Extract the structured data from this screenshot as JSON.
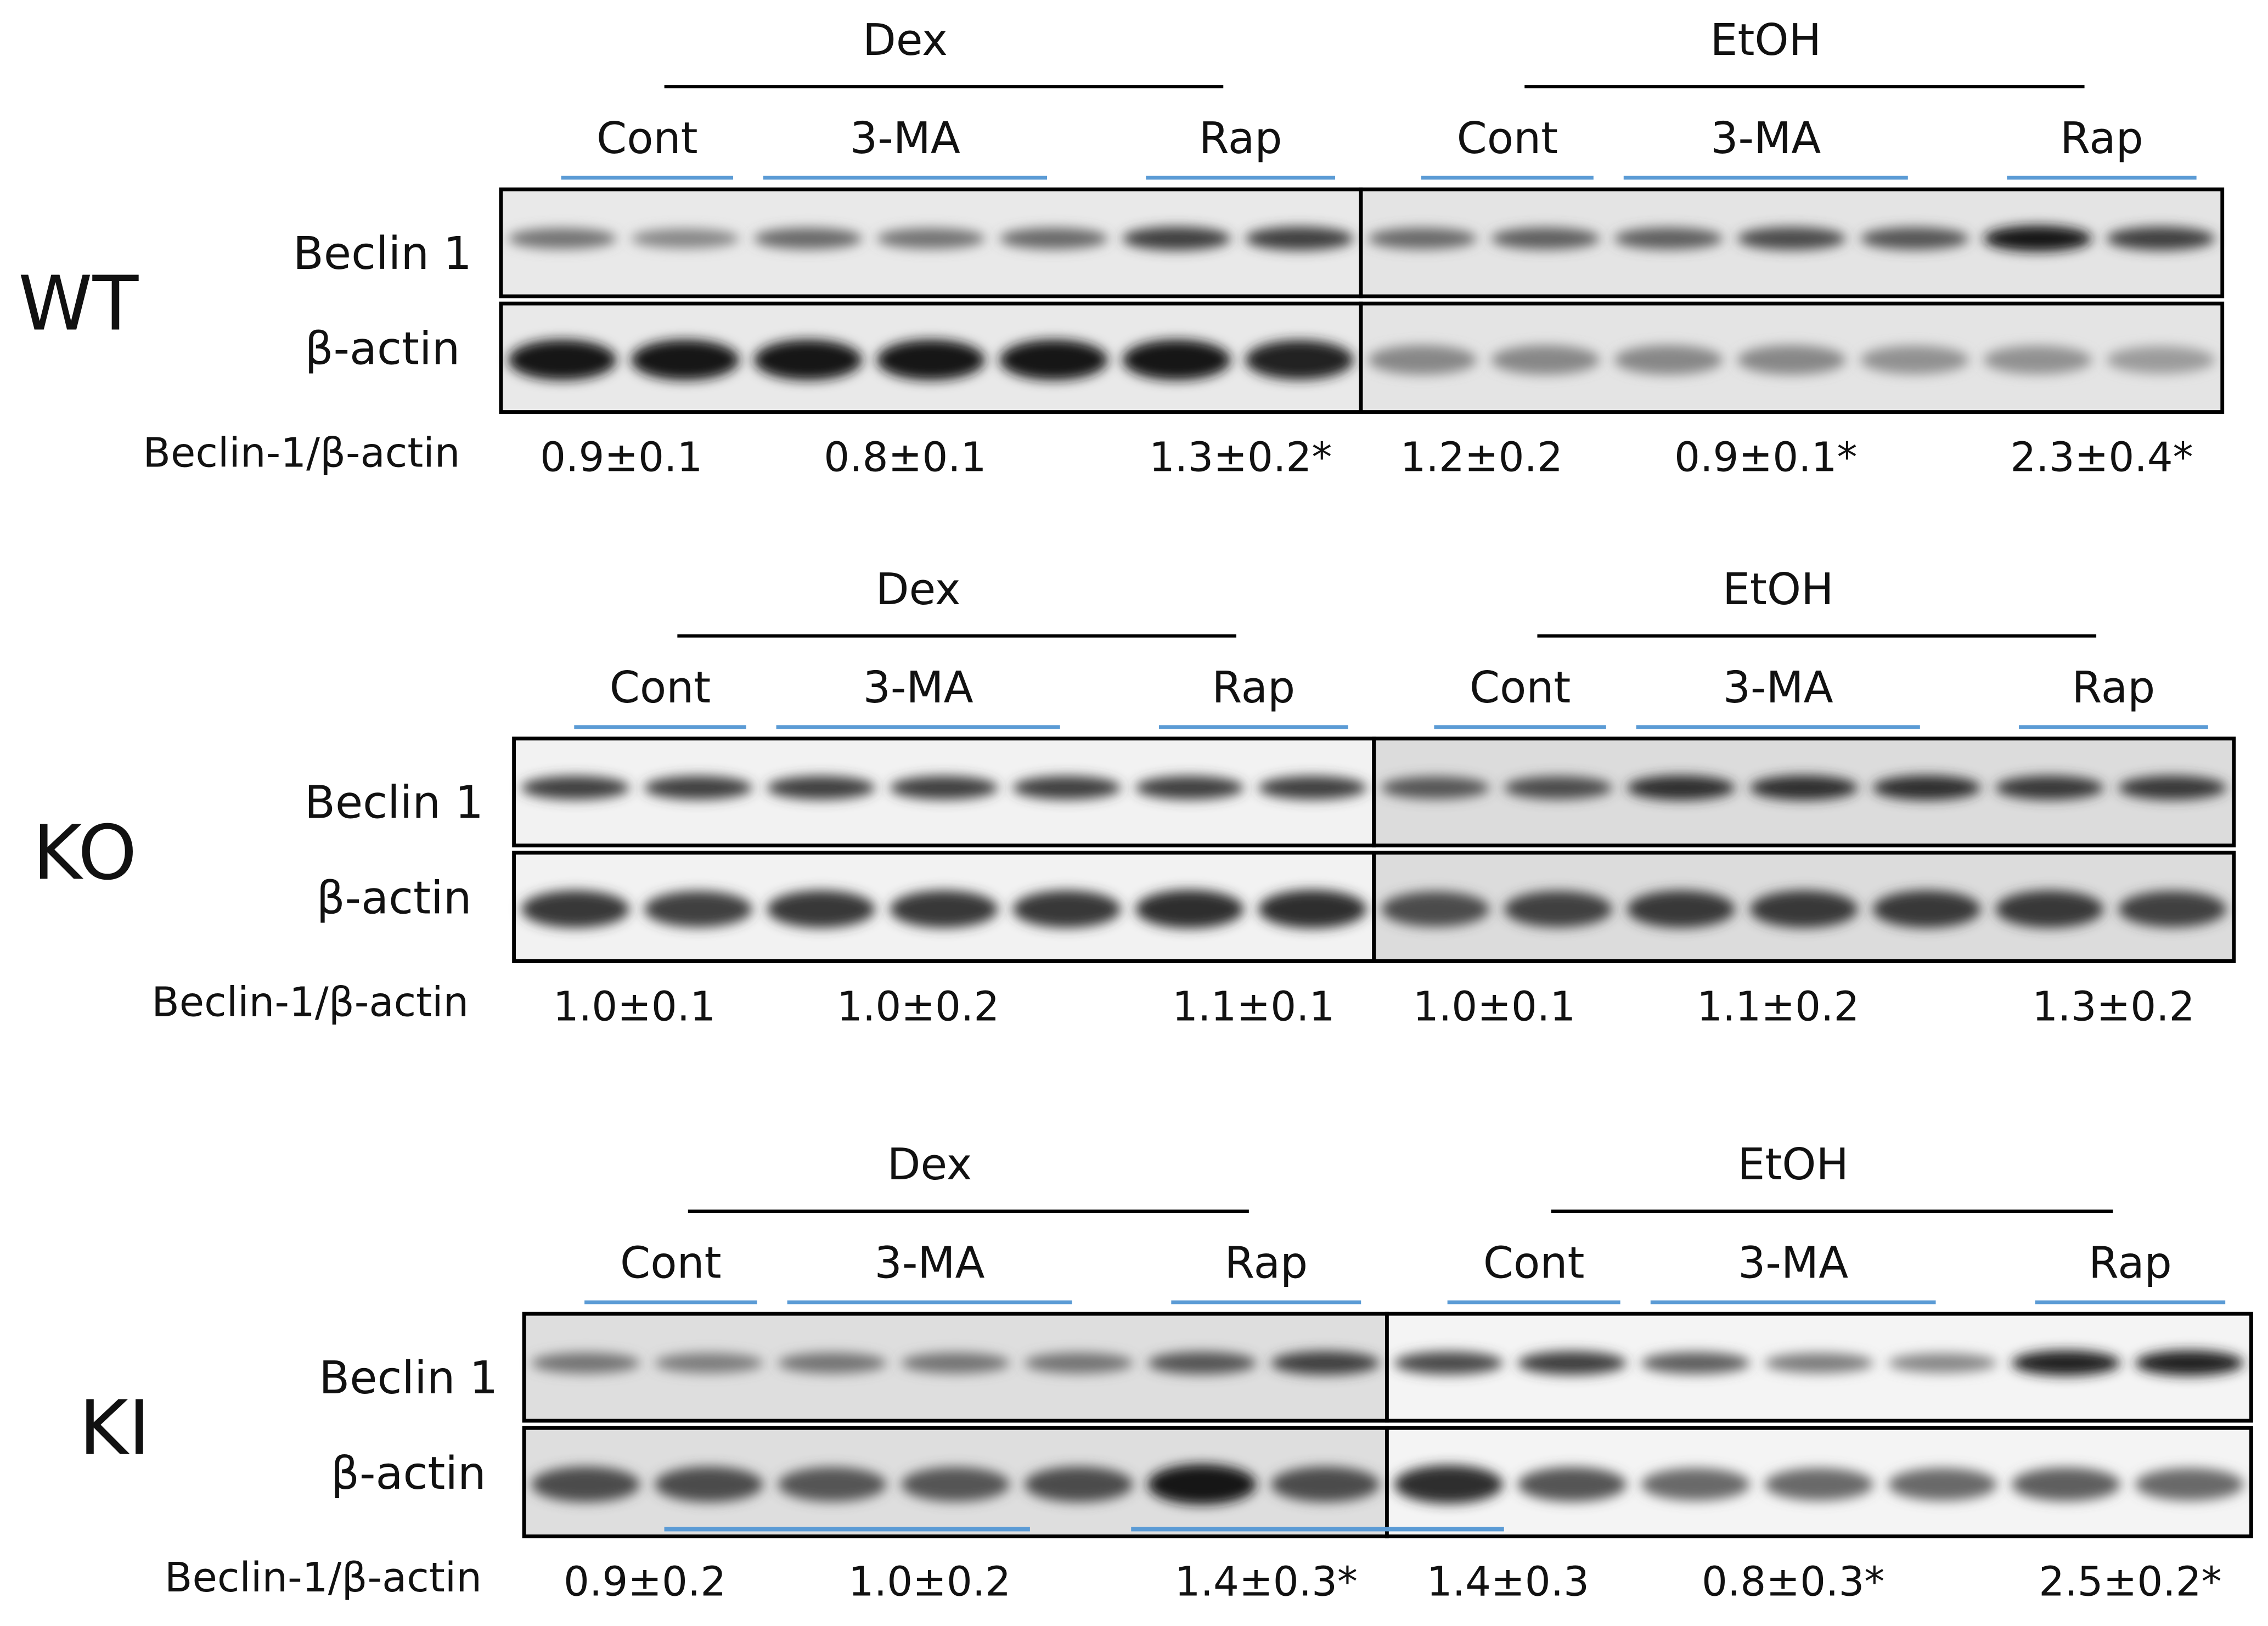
{
  "panels": [
    {
      "genotype": "WT",
      "groups": [
        {
          "treatment": "Dex",
          "subgroups": [
            "Cont",
            "3-MA",
            "Rap"
          ],
          "ratios": [
            "0.9±0.1",
            "0.8±0.1",
            "1.3±0.2*"
          ]
        },
        {
          "treatment": "EtOH",
          "subgroups": [
            "Cont",
            "3-MA",
            "Rap"
          ],
          "ratios": [
            "1.2±0.2",
            "0.9±0.1*",
            "2.3±0.4*"
          ]
        }
      ],
      "blots": [
        "Beclin 1",
        "β-actin"
      ],
      "ratio_label": "Beclin-1/β-actin"
    },
    {
      "genotype": "KO",
      "groups": [
        {
          "treatment": "Dex",
          "subgroups": [
            "Cont",
            "3-MA",
            "Rap"
          ],
          "ratios": [
            "1.0±0.1",
            "1.0±0.2",
            "1.1±0.1"
          ]
        },
        {
          "treatment": "EtOH",
          "subgroups": [
            "Cont",
            "3-MA",
            "Rap"
          ],
          "ratios": [
            "1.0±0.1",
            "1.1±0.2",
            "1.3±0.2"
          ]
        }
      ],
      "blots": [
        "Beclin 1",
        "β-actin"
      ],
      "ratio_label": "Beclin-1/β-actin"
    },
    {
      "genotype": "KI",
      "groups": [
        {
          "treatment": "Dex",
          "subgroups": [
            "Cont",
            "3-MA",
            "Rap"
          ],
          "ratios": [
            "0.9±0.2",
            "1.0±0.2",
            "1.4±0.3*"
          ]
        },
        {
          "treatment": "EtOH",
          "subgroups": [
            "Cont",
            "3-MA",
            "Rap"
          ],
          "ratios": [
            "1.4±0.3",
            "0.8±0.3*",
            "2.5±0.2*"
          ]
        }
      ],
      "blots": [
        "Beclin 1",
        "β-actin"
      ],
      "ratio_label": "Beclin-1/β-actin"
    }
  ],
  "colors": {
    "underline": "#5b9bd5",
    "ink": "#111111",
    "bracket": "#000000"
  }
}
